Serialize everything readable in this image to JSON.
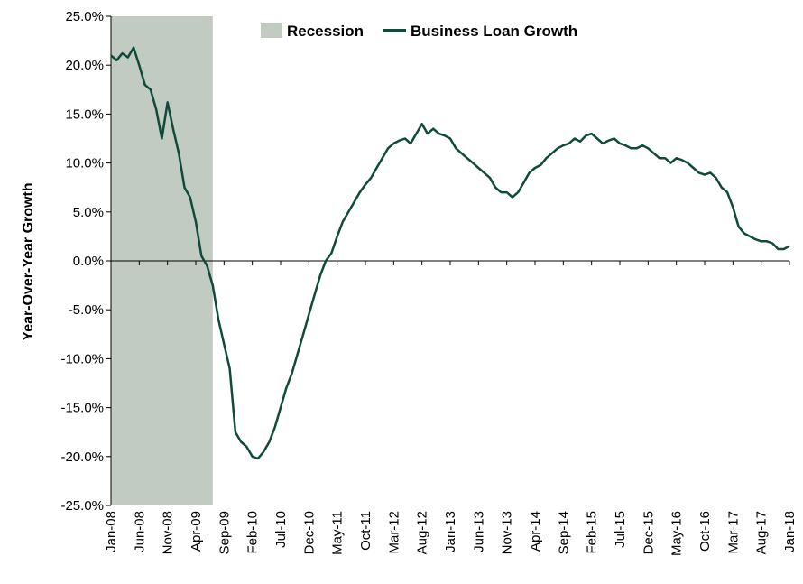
{
  "chart_data": {
    "type": "line",
    "title": "",
    "xlabel": "",
    "ylabel": "Year-Over-Year Growth",
    "ylim": [
      -25,
      25
    ],
    "y_tick_labels": [
      "25.0%",
      "20.0%",
      "15.0%",
      "10.0%",
      "5.0%",
      "0.0%",
      "-5.0%",
      "-10.0%",
      "-15.0%",
      "-20.0%",
      "-25.0%"
    ],
    "x_range": [
      "2008-01",
      "2018-01"
    ],
    "x_tick_labels": [
      "Jan-08",
      "Jun-08",
      "Nov-08",
      "Apr-09",
      "Sep-09",
      "Feb-10",
      "Jul-10",
      "Dec-10",
      "May-11",
      "Oct-11",
      "Mar-12",
      "Aug-12",
      "Jan-13",
      "Jun-13",
      "Nov-13",
      "Apr-14",
      "Sep-14",
      "Feb-15",
      "Jul-15",
      "Dec-15",
      "May-16",
      "Oct-16",
      "Mar-17",
      "Aug-17",
      "Jan-18"
    ],
    "legend": {
      "placement": "top",
      "entries": [
        "Recession",
        "Business Loan Growth"
      ]
    },
    "grid": false,
    "colors": {
      "line": "#0f4b3c",
      "recession": "#c2cbc1",
      "axis": "#000000"
    },
    "recession": {
      "name": "Recession",
      "start": "2008-01",
      "end": "2009-07"
    },
    "series": [
      {
        "name": "Business Loan Growth",
        "points": [
          [
            "2008-01",
            21.0
          ],
          [
            "2008-02",
            20.5
          ],
          [
            "2008-03",
            21.2
          ],
          [
            "2008-04",
            20.8
          ],
          [
            "2008-05",
            21.8
          ],
          [
            "2008-06",
            20.0
          ],
          [
            "2008-07",
            18.0
          ],
          [
            "2008-08",
            17.5
          ],
          [
            "2008-09",
            15.5
          ],
          [
            "2008-10",
            12.5
          ],
          [
            "2008-11",
            16.2
          ],
          [
            "2008-12",
            13.5
          ],
          [
            "2009-01",
            11.0
          ],
          [
            "2009-02",
            7.5
          ],
          [
            "2009-03",
            6.5
          ],
          [
            "2009-04",
            4.0
          ],
          [
            "2009-05",
            0.5
          ],
          [
            "2009-06",
            -0.5
          ],
          [
            "2009-07",
            -2.5
          ],
          [
            "2009-08",
            -6.0
          ],
          [
            "2009-09",
            -8.5
          ],
          [
            "2009-10",
            -11.0
          ],
          [
            "2009-11",
            -17.5
          ],
          [
            "2009-12",
            -18.5
          ],
          [
            "2010-01",
            -19.0
          ],
          [
            "2010-02",
            -20.0
          ],
          [
            "2010-03",
            -20.2
          ],
          [
            "2010-04",
            -19.5
          ],
          [
            "2010-05",
            -18.5
          ],
          [
            "2010-06",
            -17.0
          ],
          [
            "2010-07",
            -15.0
          ],
          [
            "2010-08",
            -13.0
          ],
          [
            "2010-09",
            -11.5
          ],
          [
            "2010-10",
            -9.5
          ],
          [
            "2010-11",
            -7.5
          ],
          [
            "2010-12",
            -5.5
          ],
          [
            "2011-01",
            -3.5
          ],
          [
            "2011-02",
            -1.5
          ],
          [
            "2011-03",
            0.0
          ],
          [
            "2011-04",
            0.8
          ],
          [
            "2011-05",
            2.5
          ],
          [
            "2011-06",
            4.0
          ],
          [
            "2011-07",
            5.0
          ],
          [
            "2011-08",
            6.0
          ],
          [
            "2011-09",
            7.0
          ],
          [
            "2011-10",
            7.8
          ],
          [
            "2011-11",
            8.5
          ],
          [
            "2011-12",
            9.5
          ],
          [
            "2012-01",
            10.5
          ],
          [
            "2012-02",
            11.5
          ],
          [
            "2012-03",
            12.0
          ],
          [
            "2012-04",
            12.3
          ],
          [
            "2012-05",
            12.5
          ],
          [
            "2012-06",
            12.0
          ],
          [
            "2012-07",
            13.0
          ],
          [
            "2012-08",
            14.0
          ],
          [
            "2012-09",
            13.0
          ],
          [
            "2012-10",
            13.5
          ],
          [
            "2012-11",
            13.0
          ],
          [
            "2012-12",
            12.8
          ],
          [
            "2013-01",
            12.5
          ],
          [
            "2013-02",
            11.5
          ],
          [
            "2013-03",
            11.0
          ],
          [
            "2013-04",
            10.5
          ],
          [
            "2013-05",
            10.0
          ],
          [
            "2013-06",
            9.5
          ],
          [
            "2013-07",
            9.0
          ],
          [
            "2013-08",
            8.5
          ],
          [
            "2013-09",
            7.5
          ],
          [
            "2013-10",
            7.0
          ],
          [
            "2013-11",
            7.0
          ],
          [
            "2013-12",
            6.5
          ],
          [
            "2014-01",
            7.0
          ],
          [
            "2014-02",
            8.0
          ],
          [
            "2014-03",
            9.0
          ],
          [
            "2014-04",
            9.5
          ],
          [
            "2014-05",
            9.8
          ],
          [
            "2014-06",
            10.5
          ],
          [
            "2014-07",
            11.0
          ],
          [
            "2014-08",
            11.5
          ],
          [
            "2014-09",
            11.8
          ],
          [
            "2014-10",
            12.0
          ],
          [
            "2014-11",
            12.5
          ],
          [
            "2014-12",
            12.2
          ],
          [
            "2015-01",
            12.8
          ],
          [
            "2015-02",
            13.0
          ],
          [
            "2015-03",
            12.5
          ],
          [
            "2015-04",
            12.0
          ],
          [
            "2015-05",
            12.3
          ],
          [
            "2015-06",
            12.5
          ],
          [
            "2015-07",
            12.0
          ],
          [
            "2015-08",
            11.8
          ],
          [
            "2015-09",
            11.5
          ],
          [
            "2015-10",
            11.5
          ],
          [
            "2015-11",
            11.8
          ],
          [
            "2015-12",
            11.5
          ],
          [
            "2016-01",
            11.0
          ],
          [
            "2016-02",
            10.5
          ],
          [
            "2016-03",
            10.5
          ],
          [
            "2016-04",
            10.0
          ],
          [
            "2016-05",
            10.5
          ],
          [
            "2016-06",
            10.3
          ],
          [
            "2016-07",
            10.0
          ],
          [
            "2016-08",
            9.5
          ],
          [
            "2016-09",
            9.0
          ],
          [
            "2016-10",
            8.8
          ],
          [
            "2016-11",
            9.0
          ],
          [
            "2016-12",
            8.5
          ],
          [
            "2017-01",
            7.5
          ],
          [
            "2017-02",
            7.0
          ],
          [
            "2017-03",
            5.5
          ],
          [
            "2017-04",
            3.5
          ],
          [
            "2017-05",
            2.8
          ],
          [
            "2017-06",
            2.5
          ],
          [
            "2017-07",
            2.2
          ],
          [
            "2017-08",
            2.0
          ],
          [
            "2017-09",
            2.0
          ],
          [
            "2017-10",
            1.8
          ],
          [
            "2017-11",
            1.2
          ],
          [
            "2017-12",
            1.2
          ],
          [
            "2018-01",
            1.5
          ]
        ]
      }
    ]
  }
}
